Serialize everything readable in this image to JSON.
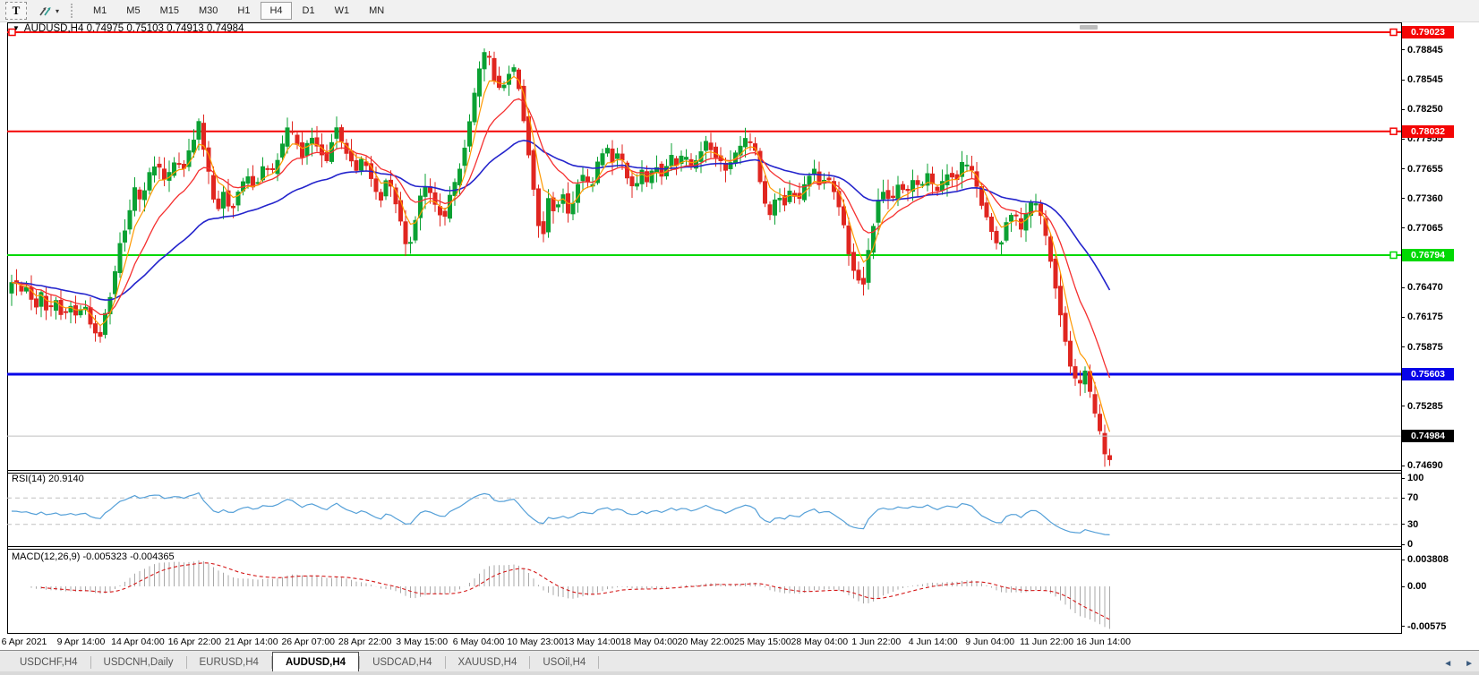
{
  "toolbar": {
    "text_tool_label": "T",
    "timeframes": [
      "M1",
      "M5",
      "M15",
      "M30",
      "H1",
      "H4",
      "D1",
      "W1",
      "MN"
    ],
    "active_timeframe": "H4"
  },
  "chart": {
    "title_symbol": "AUDUSD,H4",
    "title_values": "0.74975 0.75103 0.74913 0.74984",
    "axis_min": 0.7469,
    "axis_max": 0.79023,
    "price_axis_ticks": [
      "0.78845",
      "0.78545",
      "0.78250",
      "0.77955",
      "0.77655",
      "0.77360",
      "0.77065",
      "0.76470",
      "0.76175",
      "0.75875",
      "0.75285",
      "0.74690"
    ],
    "levels": [
      {
        "label": "0.79023",
        "price": 0.79023,
        "color": "#f40505",
        "text_color": "#ffffff",
        "width": 2,
        "handles": [
          "left",
          "right"
        ]
      },
      {
        "label": "0.78032",
        "price": 0.78032,
        "color": "#f40505",
        "text_color": "#ffffff",
        "width": 2,
        "handles": [
          "right"
        ]
      },
      {
        "label": "0.76794",
        "price": 0.76794,
        "color": "#00d903",
        "text_color": "#ffffff",
        "width": 2,
        "handles": [
          "right"
        ]
      },
      {
        "label": "0.75603",
        "price": 0.75603,
        "color": "#0703e8",
        "text_color": "#ffffff",
        "width": 3,
        "handles": []
      }
    ],
    "current_price": {
      "label": "0.74984",
      "price": 0.74984,
      "line_color": "#bfbfbf",
      "badge_bg": "#000000",
      "text_color": "#ffffff"
    },
    "candle_up_color": "#0ba133",
    "candle_down_color": "#e02620",
    "ma_fast_color": "#ff9900",
    "ma_mid_color": "#f53030",
    "ma_slow_color": "#2424cc",
    "dates": [
      "6 Apr 2021",
      "9 Apr 14:00",
      "14 Apr 04:00",
      "16 Apr 22:00",
      "21 Apr 14:00",
      "26 Apr 07:00",
      "28 Apr 22:00",
      "3 May 15:00",
      "6 May 04:00",
      "10 May 23:00",
      "13 May 14:00",
      "18 May 04:00",
      "20 May 22:00",
      "25 May 15:00",
      "28 May 04:00",
      "1 Jun 22:00",
      "4 Jun 14:00",
      "9 Jun 04:00",
      "11 Jun 22:00",
      "16 Jun 14:00"
    ],
    "price_path_anchors": [
      [
        8,
        0.7641
      ],
      [
        16,
        0.766
      ],
      [
        22,
        0.7638
      ],
      [
        30,
        0.765
      ],
      [
        38,
        0.7625
      ],
      [
        46,
        0.764
      ],
      [
        54,
        0.7621
      ],
      [
        62,
        0.7636
      ],
      [
        70,
        0.7616
      ],
      [
        78,
        0.763
      ],
      [
        86,
        0.7618
      ],
      [
        94,
        0.7631
      ],
      [
        102,
        0.761
      ],
      [
        110,
        0.7592
      ],
      [
        118,
        0.7622
      ],
      [
        126,
        0.765
      ],
      [
        134,
        0.7692
      ],
      [
        142,
        0.7712
      ],
      [
        150,
        0.7748
      ],
      [
        158,
        0.7732
      ],
      [
        166,
        0.7758
      ],
      [
        175,
        0.7772
      ],
      [
        185,
        0.7752
      ],
      [
        195,
        0.7774
      ],
      [
        205,
        0.7766
      ],
      [
        215,
        0.7792
      ],
      [
        222,
        0.7812
      ],
      [
        228,
        0.7784
      ],
      [
        235,
        0.7752
      ],
      [
        242,
        0.7718
      ],
      [
        250,
        0.7744
      ],
      [
        258,
        0.7722
      ],
      [
        266,
        0.7742
      ],
      [
        275,
        0.776
      ],
      [
        285,
        0.7746
      ],
      [
        295,
        0.7772
      ],
      [
        305,
        0.7762
      ],
      [
        315,
        0.7788
      ],
      [
        322,
        0.7808
      ],
      [
        330,
        0.7796
      ],
      [
        338,
        0.7776
      ],
      [
        346,
        0.78
      ],
      [
        355,
        0.7786
      ],
      [
        365,
        0.7772
      ],
      [
        375,
        0.7812
      ],
      [
        382,
        0.7792
      ],
      [
        390,
        0.7776
      ],
      [
        398,
        0.7764
      ],
      [
        406,
        0.778
      ],
      [
        415,
        0.7752
      ],
      [
        424,
        0.7732
      ],
      [
        432,
        0.7756
      ],
      [
        440,
        0.774
      ],
      [
        448,
        0.7712
      ],
      [
        456,
        0.7682
      ],
      [
        464,
        0.7716
      ],
      [
        472,
        0.775
      ],
      [
        480,
        0.7742
      ],
      [
        488,
        0.7726
      ],
      [
        496,
        0.7714
      ],
      [
        504,
        0.7742
      ],
      [
        512,
        0.7762
      ],
      [
        520,
        0.7792
      ],
      [
        528,
        0.7832
      ],
      [
        536,
        0.7866
      ],
      [
        544,
        0.7888
      ],
      [
        552,
        0.7856
      ],
      [
        560,
        0.7842
      ],
      [
        568,
        0.7862
      ],
      [
        576,
        0.7868
      ],
      [
        584,
        0.7822
      ],
      [
        592,
        0.7772
      ],
      [
        600,
        0.7716
      ],
      [
        606,
        0.7694
      ],
      [
        612,
        0.7736
      ],
      [
        620,
        0.7722
      ],
      [
        628,
        0.7742
      ],
      [
        636,
        0.7716
      ],
      [
        644,
        0.775
      ],
      [
        652,
        0.776
      ],
      [
        660,
        0.7744
      ],
      [
        668,
        0.7772
      ],
      [
        676,
        0.779
      ],
      [
        684,
        0.7774
      ],
      [
        692,
        0.7782
      ],
      [
        700,
        0.776
      ],
      [
        708,
        0.7742
      ],
      [
        716,
        0.7764
      ],
      [
        724,
        0.775
      ],
      [
        732,
        0.7772
      ],
      [
        740,
        0.7757
      ],
      [
        748,
        0.778
      ],
      [
        756,
        0.777
      ],
      [
        764,
        0.7782
      ],
      [
        772,
        0.7767
      ],
      [
        780,
        0.7777
      ],
      [
        788,
        0.7794
      ],
      [
        796,
        0.7784
      ],
      [
        804,
        0.7774
      ],
      [
        812,
        0.7762
      ],
      [
        820,
        0.778
      ],
      [
        828,
        0.779
      ],
      [
        836,
        0.7797
      ],
      [
        844,
        0.7782
      ],
      [
        852,
        0.7737
      ],
      [
        860,
        0.772
      ],
      [
        868,
        0.7742
      ],
      [
        876,
        0.773
      ],
      [
        884,
        0.7747
      ],
      [
        892,
        0.7732
      ],
      [
        900,
        0.7754
      ],
      [
        908,
        0.7767
      ],
      [
        916,
        0.775
      ],
      [
        924,
        0.776
      ],
      [
        932,
        0.7742
      ],
      [
        940,
        0.772
      ],
      [
        948,
        0.7682
      ],
      [
        956,
        0.7657
      ],
      [
        964,
        0.765
      ],
      [
        972,
        0.7694
      ],
      [
        980,
        0.7732
      ],
      [
        988,
        0.7744
      ],
      [
        996,
        0.7732
      ],
      [
        1004,
        0.775
      ],
      [
        1012,
        0.774
      ],
      [
        1020,
        0.7757
      ],
      [
        1028,
        0.7747
      ],
      [
        1036,
        0.776
      ],
      [
        1044,
        0.7744
      ],
      [
        1052,
        0.775
      ],
      [
        1060,
        0.7764
      ],
      [
        1068,
        0.7754
      ],
      [
        1076,
        0.7774
      ],
      [
        1084,
        0.7767
      ],
      [
        1092,
        0.7744
      ],
      [
        1100,
        0.772
      ],
      [
        1108,
        0.7702
      ],
      [
        1116,
        0.7684
      ],
      [
        1124,
        0.7714
      ],
      [
        1132,
        0.7724
      ],
      [
        1140,
        0.7704
      ],
      [
        1148,
        0.7727
      ],
      [
        1156,
        0.7732
      ],
      [
        1164,
        0.7714
      ],
      [
        1172,
        0.7682
      ],
      [
        1180,
        0.7642
      ],
      [
        1188,
        0.7602
      ],
      [
        1196,
        0.7567
      ],
      [
        1204,
        0.7547
      ],
      [
        1212,
        0.7562
      ],
      [
        1220,
        0.7532
      ],
      [
        1228,
        0.7504
      ],
      [
        1234,
        0.7481
      ],
      [
        1239,
        0.7469
      ],
      [
        1243,
        0.7498
      ]
    ]
  },
  "rsi": {
    "label": "RSI(14) 20.9140",
    "period": 14,
    "line_color": "#55a0d8",
    "ticks": [
      {
        "v": 100,
        "label": "100"
      },
      {
        "v": 70,
        "label": "70"
      },
      {
        "v": 30,
        "label": "30"
      },
      {
        "v": 0,
        "label": "0"
      }
    ],
    "guide_levels": [
      70,
      30
    ]
  },
  "macd": {
    "label": "MACD(12,26,9) -0.005323 -0.004365",
    "fast": 12,
    "slow": 26,
    "signal": 9,
    "hist_color": "#a8a8a8",
    "signal_color": "#d41818",
    "ticks": [
      {
        "v": 0.003808,
        "label": "0.003808"
      },
      {
        "v": 0,
        "label": "0.00"
      },
      {
        "v": -0.00575,
        "label": "-0.00575"
      }
    ]
  },
  "tabs": {
    "items": [
      "USDCHF,H4",
      "USDCNH,Daily",
      "EURUSD,H4",
      "AUDUSD,H4",
      "USDCAD,H4",
      "XAUUSD,H4",
      "USOil,H4"
    ],
    "active": "AUDUSD,H4"
  }
}
